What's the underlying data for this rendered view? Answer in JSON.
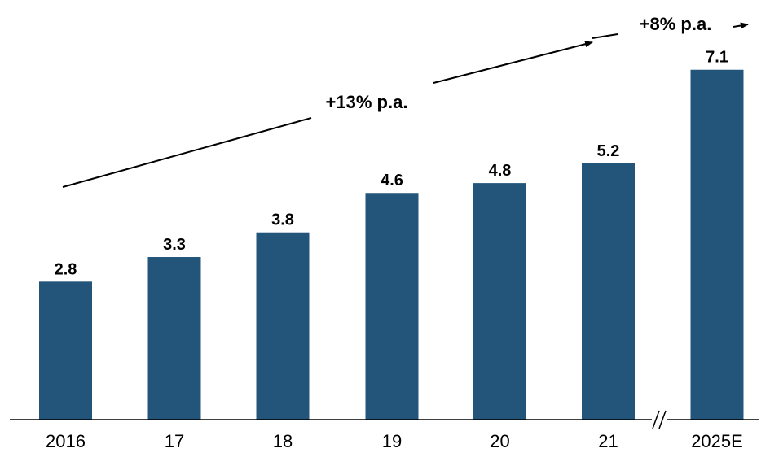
{
  "chart_data": {
    "type": "bar",
    "categories": [
      "2016",
      "17",
      "18",
      "19",
      "20",
      "21",
      "2025E"
    ],
    "values": [
      2.8,
      3.3,
      3.8,
      4.6,
      4.8,
      5.2,
      7.1
    ],
    "value_labels": [
      "2.8",
      "3.3",
      "3.8",
      "4.6",
      "4.8",
      "5.2",
      "7.1"
    ],
    "title": "",
    "xlabel": "",
    "ylabel": "",
    "ylim": [
      0,
      8
    ],
    "grid": false,
    "legend": "none",
    "axis_break_between": [
      "21",
      "2025E"
    ],
    "annotations": [
      {
        "label": "+13% p.a.",
        "from": "2016",
        "to": "21"
      },
      {
        "label": "+8% p.a.",
        "from": "21",
        "to": "2025E"
      }
    ],
    "colors": {
      "bar": "#23557b",
      "text": "#000000",
      "axis": "#000000"
    }
  }
}
